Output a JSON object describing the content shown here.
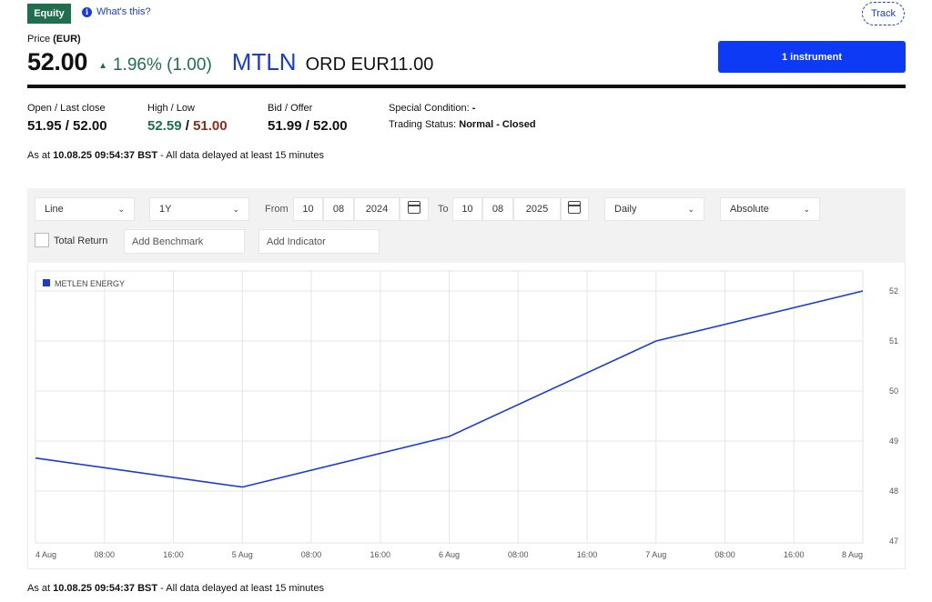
{
  "header": {
    "equity_badge": "Equity",
    "whats_this": "What's this?",
    "track": "Track"
  },
  "price": {
    "label_prefix": "Price",
    "currency": "(EUR)",
    "value": "52.00",
    "change": "1.96% (1.00)",
    "ticker": "MTLN",
    "description": "ORD EUR11.00",
    "instrument_button": "1 instrument"
  },
  "stats": {
    "open_last_label": "Open / Last close",
    "open_last_value": "51.95 / 52.00",
    "high_low_label": "High / Low",
    "high_value": "52.59",
    "low_value": "51.00",
    "bid_offer_label": "Bid / Offer",
    "bid_offer_value": "51.99 / 52.00",
    "special_condition_label": "Special Condition:",
    "special_condition_value": "-",
    "trading_status_label": "Trading Status:",
    "trading_status_value": "Normal - Closed"
  },
  "asat": {
    "prefix": "As at",
    "timestamp": "10.08.25 09:54:37 BST",
    "suffix": "- All data delayed at least 15 minutes"
  },
  "controls": {
    "chart_type": "Line",
    "period": "1Y",
    "from_label": "From",
    "from_day": "10",
    "from_month": "08",
    "from_year": "2024",
    "to_label": "To",
    "to_day": "10",
    "to_month": "08",
    "to_year": "2025",
    "interval": "Daily",
    "scale": "Absolute",
    "total_return": "Total Return",
    "benchmark_placeholder": "Add Benchmark",
    "indicator_placeholder": "Add Indicator"
  },
  "colors": {
    "accent": "#0d3af5",
    "positive": "#1f6e4e",
    "negative": "#8b2c18",
    "line": "#1a3cd6"
  },
  "chart_data": {
    "type": "line",
    "x": [
      "4 Aug",
      "5 Aug",
      "6 Aug",
      "7 Aug",
      "8 Aug"
    ],
    "x_ticks": [
      "4 Aug",
      "08:00",
      "16:00",
      "5 Aug",
      "08:00",
      "16:00",
      "6 Aug",
      "08:00",
      "16:00",
      "7 Aug",
      "08:00",
      "16:00",
      "8 Aug"
    ],
    "series": [
      {
        "name": "METLEN ENERGY",
        "values": [
          48.66,
          48.08,
          49.09,
          51.0,
          52.0
        ]
      }
    ],
    "y_ticks": [
      47,
      48,
      49,
      50,
      51,
      52
    ],
    "ylim": [
      47,
      52
    ],
    "legend_position": "top-left",
    "grid": true
  }
}
